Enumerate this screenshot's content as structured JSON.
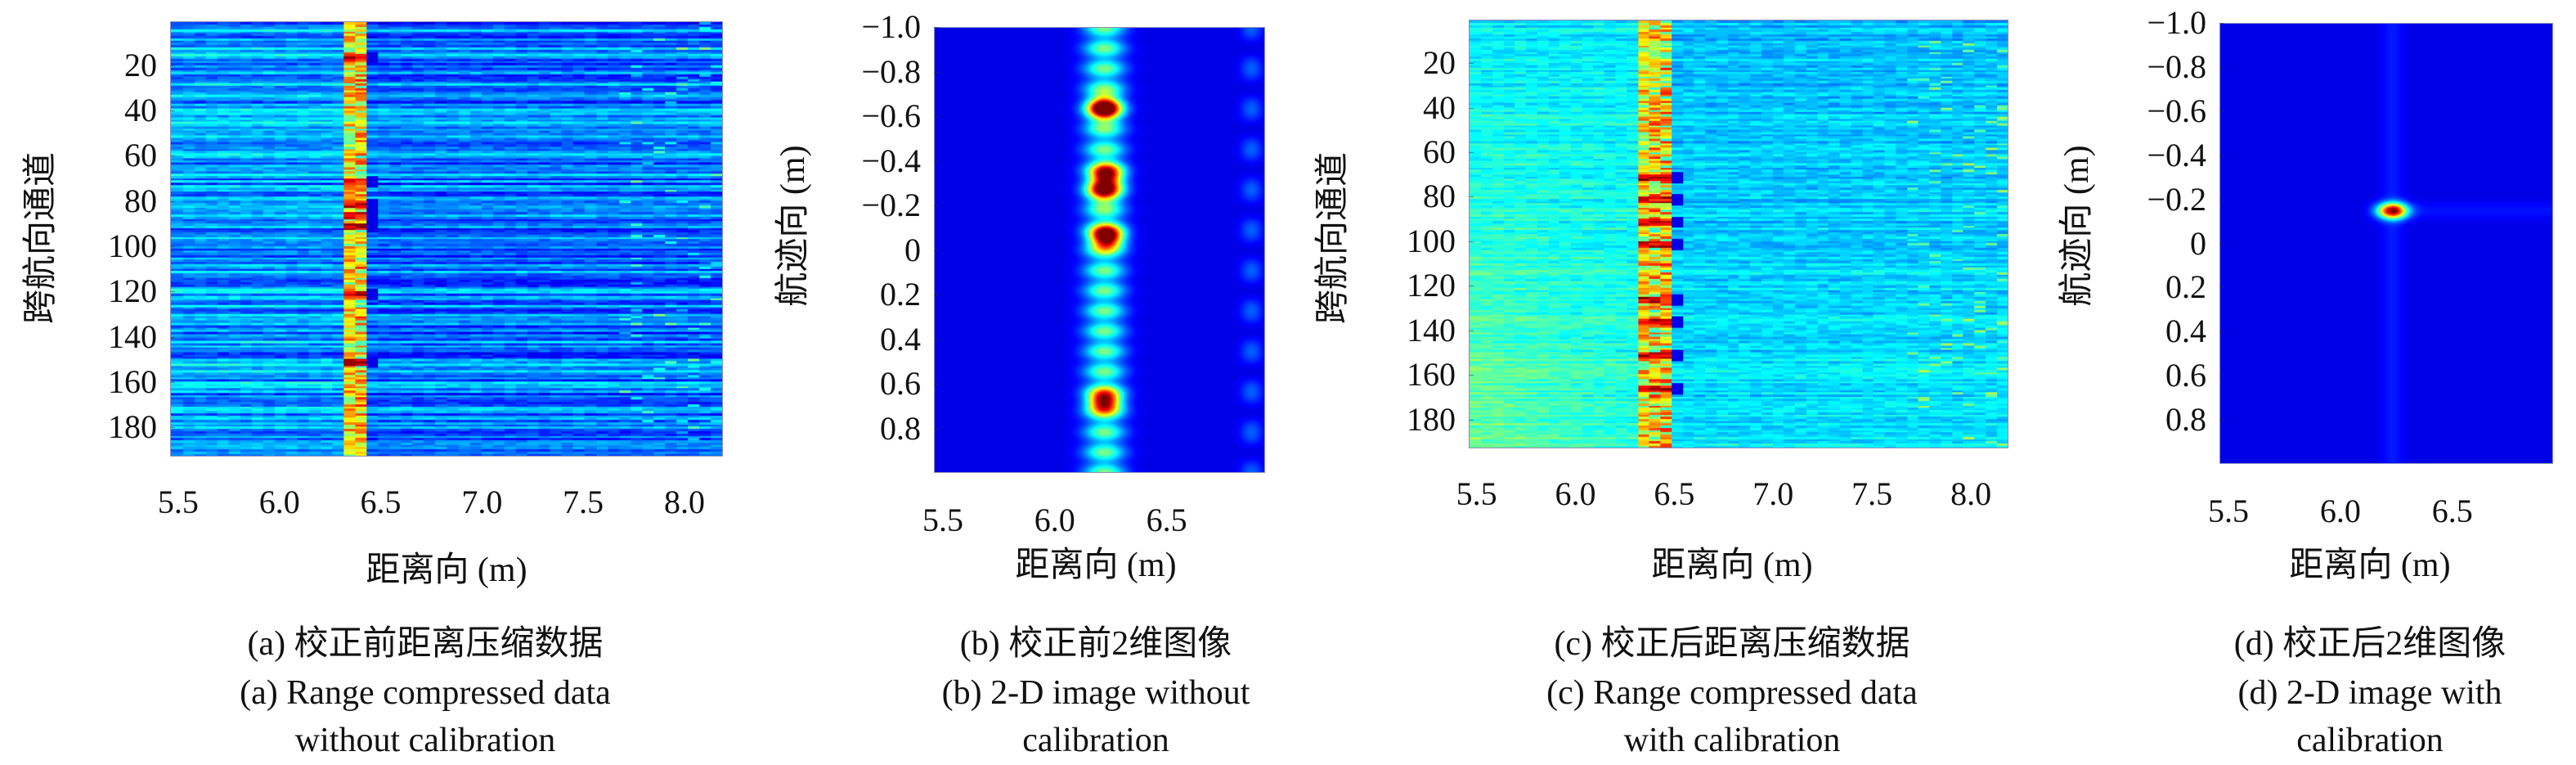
{
  "chart_data": [
    {
      "id": "a",
      "type": "heatmap",
      "colormap": "jet",
      "xlabel": "距离向 (m)",
      "ylabel": "跨航向通道",
      "xlim": [
        5.46,
        8.19
      ],
      "ylim": [
        0.5,
        193
      ],
      "y_reversed": true,
      "xticks": [
        5.5,
        6.0,
        6.5,
        7.0,
        7.5,
        8.0
      ],
      "xtick_labels": [
        "5.5",
        "6.0",
        "6.5",
        "7.0",
        "7.5",
        "8.0"
      ],
      "yticks": [
        20,
        40,
        60,
        80,
        100,
        120,
        140,
        160,
        180
      ],
      "ytick_labels": [
        "20",
        "40",
        "60",
        "80",
        "100",
        "120",
        "140",
        "160",
        "180"
      ],
      "caption_cn": "(a) 校正前距离压缩数据",
      "caption_en_1": "(a) Range compressed data",
      "caption_en_2": "without calibration",
      "description_values": {
        "background_level": 0.28,
        "bright_columns_m": [
          6.3,
          6.37
        ],
        "peak_rows": [
          15,
          70,
          80,
          85,
          90,
          120,
          150
        ],
        "row_banding": true
      }
    },
    {
      "id": "b",
      "type": "heatmap",
      "colormap": "jet",
      "xlabel": "距离向 (m)",
      "ylabel": "航迹向 (m)",
      "xlim": [
        5.46,
        6.94
      ],
      "ylim": [
        -1.0,
        1.0
      ],
      "y_reversed": true,
      "xticks": [
        5.5,
        6.0,
        6.5
      ],
      "xtick_labels": [
        "5.5",
        "6.0",
        "6.5"
      ],
      "yticks": [
        -1.0,
        -0.8,
        -0.6,
        -0.4,
        -0.2,
        0,
        0.2,
        0.4,
        0.6,
        0.8
      ],
      "ytick_labels": [
        "−1.0",
        "−0.8",
        "−0.6",
        "−0.4",
        "−0.2",
        "0",
        "0.2",
        "0.4",
        "0.6",
        "0.8"
      ],
      "caption_cn": "(b) 校正前2维图像",
      "caption_en_1": "(b) 2-D image without",
      "caption_en_2": "calibration",
      "peaks": [
        {
          "x": 6.22,
          "y": -0.64,
          "v": 1.0
        },
        {
          "x": 6.23,
          "y": -0.06,
          "v": 1.0
        },
        {
          "x": 6.22,
          "y": 0.68,
          "v": 0.85
        },
        {
          "x": 6.23,
          "y": -0.34,
          "v": 0.75
        },
        {
          "x": 6.22,
          "y": -0.27,
          "v": 0.7
        }
      ],
      "stripe_x_m": 6.22
    },
    {
      "id": "c",
      "type": "heatmap",
      "colormap": "jet",
      "xlabel": "距离向 (m)",
      "ylabel": "跨航向通道",
      "xlim": [
        5.46,
        8.19
      ],
      "ylim": [
        0.5,
        193
      ],
      "y_reversed": true,
      "xticks": [
        5.5,
        6.0,
        6.5,
        7.0,
        7.5,
        8.0
      ],
      "xtick_labels": [
        "5.5",
        "6.0",
        "6.5",
        "7.0",
        "7.5",
        "8.0"
      ],
      "yticks": [
        20,
        40,
        60,
        80,
        100,
        120,
        140,
        160,
        180
      ],
      "ytick_labels": [
        "20",
        "40",
        "60",
        "80",
        "100",
        "120",
        "140",
        "160",
        "180"
      ],
      "caption_cn": "(c) 校正后距离压缩数据",
      "caption_en_1": "(c) Range compressed data",
      "caption_en_2": "with calibration",
      "description_values": {
        "background_level": 0.36,
        "bright_columns_m": [
          6.34,
          6.4
        ],
        "peak_rows": [
          70,
          80,
          90,
          100,
          125,
          135,
          150,
          165
        ]
      }
    },
    {
      "id": "d",
      "type": "heatmap",
      "colormap": "jet",
      "xlabel": "距离向 (m)",
      "ylabel": "航迹向 (m)",
      "xlim": [
        5.46,
        6.95
      ],
      "ylim": [
        -1.0,
        1.0
      ],
      "y_reversed": true,
      "xticks": [
        5.5,
        6.0,
        6.5
      ],
      "xtick_labels": [
        "5.5",
        "6.0",
        "6.5"
      ],
      "yticks": [
        -1.0,
        -0.8,
        -0.6,
        -0.4,
        -0.2,
        0,
        0.2,
        0.4,
        0.6,
        0.8
      ],
      "ytick_labels": [
        "−1.0",
        "−0.8",
        "−0.6",
        "−0.4",
        "−0.2",
        "0",
        "0.2",
        "0.4",
        "0.6",
        "0.8"
      ],
      "caption_cn": "(d) 校正后2维图像",
      "caption_en_1": "(d) 2-D image with",
      "caption_en_2": "calibration",
      "peaks": [
        {
          "x": 6.23,
          "y": -0.15,
          "v": 1.0
        }
      ]
    }
  ]
}
